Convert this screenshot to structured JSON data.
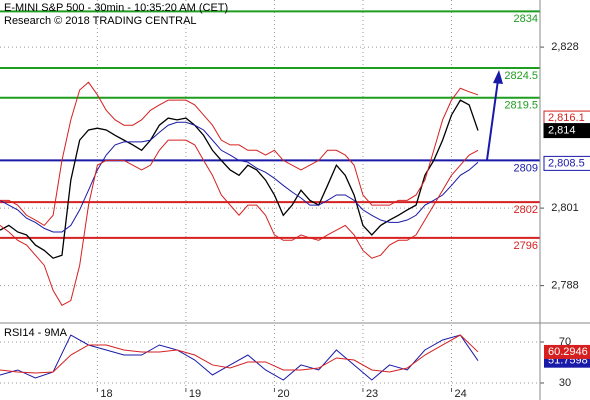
{
  "chart_data": [
    {
      "type": "line",
      "title": "E-MINI S&P 500 - 30min - 10:35:20 AM (CET)",
      "subtitle": "Research © 2018 TRADING CENTRAL",
      "xlim": [
        -0.1,
        6.0
      ],
      "ylim": [
        2781.9,
        2835.9
      ],
      "yticks": [
        {
          "value": 2828,
          "label": "2,828"
        },
        {
          "value": 2801,
          "label": "2,801"
        },
        {
          "value": 2788,
          "label": "2,788"
        }
      ],
      "grid": true,
      "x": [
        -0.1,
        0,
        0.1,
        0.2,
        0.3,
        0.4,
        0.5,
        0.6,
        0.7,
        0.8,
        0.9,
        1,
        1.1,
        1.2,
        1.3,
        1.4,
        1.5,
        1.6,
        1.7,
        1.8,
        1.9,
        2,
        2.1,
        2.2,
        2.3,
        2.4,
        2.5,
        2.6,
        2.7,
        2.8,
        2.9,
        3,
        3.1,
        3.2,
        3.3,
        3.4,
        3.5,
        3.6,
        3.7,
        3.8,
        3.9,
        4,
        4.1,
        4.2,
        4.3,
        4.4,
        4.5,
        4.6,
        4.7,
        4.8,
        4.9,
        5,
        5.1,
        5.2,
        5.3
      ],
      "series": [
        {
          "color": "#000000",
          "values": [
            2797.3,
            2798.1,
            2797.0,
            2796.5,
            2794.8,
            2793.9,
            2792.6,
            2793.1,
            2805.7,
            2812.4,
            2814.1,
            2814.4,
            2814.1,
            2813.2,
            2812.4,
            2811.6,
            2810.7,
            2812.4,
            2814.9,
            2816.1,
            2815.8,
            2816.1,
            2814.9,
            2813.2,
            2810.7,
            2809.0,
            2807.4,
            2806.5,
            2808.2,
            2807.4,
            2805.7,
            2803.2,
            2799.8,
            2801.5,
            2804.0,
            2802.3,
            2801.5,
            2804.8,
            2808.2,
            2806.5,
            2803.2,
            2798.1,
            2796.5,
            2798.1,
            2799.0,
            2799.8,
            2800.7,
            2801.5,
            2806.5,
            2809.0,
            2812.4,
            2816.6,
            2819.1,
            2818.3,
            2814
          ]
        },
        {
          "color": "#1a1aa8",
          "values": [
            2802.3,
            2801.5,
            2800.7,
            2799.3,
            2798.6,
            2797.6,
            2797.0,
            2797.0,
            2798.1,
            2800.7,
            2804.0,
            2807.4,
            2809.9,
            2811.6,
            2812.1,
            2812.1,
            2812.1,
            2812.4,
            2813.7,
            2814.9,
            2815.4,
            2815.4,
            2814.9,
            2814.1,
            2812.4,
            2810.7,
            2809.9,
            2809.0,
            2808.7,
            2807.7,
            2807.0,
            2806.0,
            2804.8,
            2803.7,
            2802.7,
            2801.5,
            2801.5,
            2802.3,
            2803.2,
            2803.2,
            2802.3,
            2800.7,
            2799.8,
            2799.0,
            2798.6,
            2798.6,
            2799.0,
            2799.8,
            2801.5,
            2802.3,
            2803.2,
            2804.8,
            2806.5,
            2807.4,
            2808.7
          ]
        },
        {
          "color": "#d62020",
          "values": [
            2802.3,
            2802.3,
            2801.5,
            2799.8,
            2799.0,
            2798.1,
            2799.8,
            2809.0,
            2815.8,
            2820.8,
            2822.1,
            2820.0,
            2817.4,
            2815.8,
            2814.9,
            2814.9,
            2815.8,
            2817.4,
            2818.3,
            2819.1,
            2819.1,
            2819.1,
            2818.3,
            2816.6,
            2814.9,
            2812.4,
            2811.6,
            2811.6,
            2810.7,
            2810.7,
            2809.9,
            2810.7,
            2809.0,
            2808.2,
            2807.4,
            2808.2,
            2809.0,
            2810.7,
            2810.7,
            2809.9,
            2808.2,
            2803.2,
            2801.5,
            2801.5,
            2801.5,
            2802.3,
            2802.3,
            2803.2,
            2805.7,
            2810.7,
            2815.8,
            2819.1,
            2821.1,
            2820.5,
            2820.0
          ]
        },
        {
          "color": "#d62020",
          "values": [
            2798.1,
            2797.0,
            2795.6,
            2794.8,
            2793.1,
            2791.4,
            2787.2,
            2784.7,
            2785.5,
            2791.4,
            2801.5,
            2808.2,
            2809.0,
            2809.0,
            2809.0,
            2808.2,
            2807.4,
            2808.2,
            2810.7,
            2812.4,
            2812.4,
            2812.4,
            2811.6,
            2809.0,
            2806.5,
            2803.2,
            2801.5,
            2799.8,
            2801.5,
            2801.5,
            2799.8,
            2796.5,
            2795.6,
            2795.6,
            2796.5,
            2796.0,
            2795.6,
            2796.5,
            2797.3,
            2798.1,
            2796.5,
            2793.9,
            2792.6,
            2793.1,
            2794.8,
            2795.6,
            2795.6,
            2796.5,
            2799.0,
            2801.5,
            2804.0,
            2806.5,
            2808.2,
            2809.9,
            2810.7
          ]
        }
      ],
      "levels": [
        {
          "value": 2834,
          "color": "#1e9e1e"
        },
        {
          "value": 2824.5,
          "color": "#1e9e1e"
        },
        {
          "value": 2819.5,
          "color": "#1e9e1e"
        },
        {
          "value": 2809,
          "color": "#1a1aa8"
        },
        {
          "value": 2802,
          "color": "#d62020"
        },
        {
          "value": 2796,
          "color": "#d62020"
        }
      ],
      "price_tags": [
        {
          "value": 2816.1,
          "label": "2,816.1",
          "color": "#d62020",
          "filled": false
        },
        {
          "value": 2814,
          "label": "2,814",
          "color": "#000000",
          "filled": true
        },
        {
          "value": 2808.5,
          "label": "2,808.5",
          "color": "#1a1aa8",
          "filled": false
        }
      ]
    },
    {
      "type": "line",
      "title": "RSI14 - 9MA",
      "xlim": [
        -0.1,
        6.0
      ],
      "ylim": [
        25.1,
        86.6
      ],
      "yticks": [
        70,
        30
      ],
      "xticks": [
        {
          "value": 1,
          "label": "18"
        },
        {
          "value": 2,
          "label": "19"
        },
        {
          "value": 3,
          "label": "20"
        },
        {
          "value": 4,
          "label": "23"
        },
        {
          "value": 5,
          "label": "24"
        }
      ],
      "grid": true,
      "x": [
        -0.1,
        0.1,
        0.3,
        0.5,
        0.7,
        0.9,
        1.1,
        1.3,
        1.5,
        1.7,
        1.9,
        2.1,
        2.3,
        2.5,
        2.7,
        2.9,
        3.1,
        3.3,
        3.5,
        3.7,
        3.9,
        4.1,
        4.3,
        4.5,
        4.7,
        4.9,
        5.1,
        5.3
      ],
      "series": [
        {
          "color": "#1a1aa8",
          "values": [
            37.8,
            42.7,
            34.9,
            40.7,
            76.8,
            67.1,
            62.2,
            57.3,
            57.3,
            67.1,
            62.2,
            52.4,
            37.8,
            47.6,
            57.3,
            42.7,
            32.9,
            47.6,
            42.7,
            62.2,
            47.6,
            32.9,
            47.6,
            42.7,
            62.2,
            72.0,
            76.8,
            51.7598
          ]
        },
        {
          "color": "#d62020",
          "values": [
            42.7,
            40.7,
            39.8,
            40.7,
            57.3,
            67.1,
            67.1,
            62.2,
            60.2,
            60.2,
            62.2,
            57.3,
            47.6,
            44.6,
            50.5,
            50.5,
            42.7,
            42.7,
            44.6,
            54.4,
            52.4,
            42.7,
            40.7,
            44.6,
            57.3,
            67.1,
            76.8,
            60.2946
          ]
        }
      ]
    }
  ]
}
